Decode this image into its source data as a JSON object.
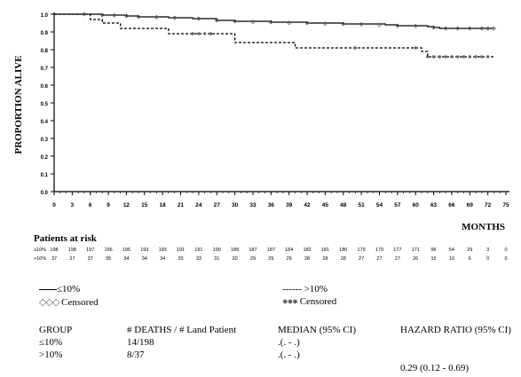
{
  "chart_data": {
    "type": "line",
    "ylabel": "PROPORTION ALIVE",
    "xlabel": "MONTHS",
    "xlim": [
      0,
      75
    ],
    "ylim": [
      0,
      1.0
    ],
    "xticks": [
      "0",
      "3",
      "6",
      "9",
      "12",
      "15",
      "18",
      "21",
      "24",
      "27",
      "30",
      "33",
      "36",
      "39",
      "42",
      "45",
      "48",
      "51",
      "54",
      "57",
      "60",
      "63",
      "66",
      "69",
      "72",
      "75"
    ],
    "yticks": [
      "0.0",
      "0.1",
      "0.2",
      "0.3",
      "0.4",
      "0.5",
      "0.6",
      "0.7",
      "0.8",
      "0.9",
      "1.0"
    ],
    "grid": false,
    "series": [
      {
        "name": "≤10%",
        "style": "solid",
        "color": "#000000",
        "x": [
          0,
          8,
          12,
          14,
          19,
          23,
          27,
          30,
          36,
          42,
          48,
          55,
          57,
          62,
          63,
          64,
          73
        ],
        "y": [
          1.0,
          0.995,
          0.99,
          0.985,
          0.98,
          0.975,
          0.965,
          0.96,
          0.955,
          0.95,
          0.945,
          0.94,
          0.935,
          0.93,
          0.925,
          0.92,
          0.92
        ],
        "censored_x": [
          5,
          8,
          10,
          12,
          14,
          17,
          20,
          24,
          27,
          30,
          33,
          36,
          39,
          42,
          45,
          48,
          51,
          54,
          57,
          60,
          63,
          65,
          67,
          69,
          71,
          72,
          73
        ],
        "censored_y": [
          1.0,
          0.995,
          0.993,
          0.99,
          0.985,
          0.983,
          0.98,
          0.975,
          0.965,
          0.96,
          0.957,
          0.955,
          0.952,
          0.95,
          0.947,
          0.945,
          0.943,
          0.94,
          0.935,
          0.933,
          0.925,
          0.92,
          0.92,
          0.92,
          0.92,
          0.92,
          0.92
        ]
      },
      {
        "name": ">10%",
        "style": "dashed",
        "color": "#000000",
        "x": [
          0,
          6,
          8,
          11,
          19,
          30,
          40,
          61,
          62,
          73
        ],
        "y": [
          1.0,
          0.97,
          0.95,
          0.92,
          0.89,
          0.84,
          0.81,
          0.79,
          0.76,
          0.76
        ],
        "censored_x": [
          23,
          24,
          25,
          26,
          50,
          60,
          62,
          63,
          64,
          65,
          66,
          67,
          68,
          69,
          70,
          71,
          72
        ],
        "censored_y": [
          0.89,
          0.89,
          0.89,
          0.89,
          0.81,
          0.81,
          0.76,
          0.76,
          0.76,
          0.76,
          0.76,
          0.76,
          0.76,
          0.76,
          0.76,
          0.76,
          0.76
        ]
      }
    ]
  },
  "risk_table": {
    "title": "Patients at risk",
    "rows": [
      {
        "label": "≤10%",
        "values": [
          "198",
          "198",
          "197",
          "196",
          "195",
          "193",
          "193",
          "191",
          "191",
          "190",
          "188",
          "187",
          "187",
          "184",
          "182",
          "181",
          "180",
          "179",
          "179",
          "177",
          "171",
          "96",
          "54",
          "29",
          "3",
          "0"
        ]
      },
      {
        "label": ">10%",
        "values": [
          "37",
          "37",
          "37",
          "35",
          "34",
          "34",
          "34",
          "33",
          "33",
          "31",
          "30",
          "29",
          "29",
          "29",
          "28",
          "28",
          "28",
          "27",
          "27",
          "27",
          "26",
          "15",
          "10",
          "6",
          "0",
          "0"
        ]
      }
    ]
  },
  "legend": {
    "solid_label": "≤10%",
    "dashed_label": "------ >10%",
    "censored_label": "Censored"
  },
  "summary": {
    "headers": [
      "GROUP",
      "# DEATHS / # Land Patient",
      "MEDIAN (95% CI)",
      "HAZARD RATIO (95% CI)"
    ],
    "rows": [
      {
        "group": "≤10%",
        "deaths": "14/198",
        "median": ".(. - .)"
      },
      {
        "group": ">10%",
        "deaths": "8/37",
        "median": ".(. - .)"
      }
    ],
    "hazard_ratio": "0.29 (0.12 - 0.69)"
  }
}
